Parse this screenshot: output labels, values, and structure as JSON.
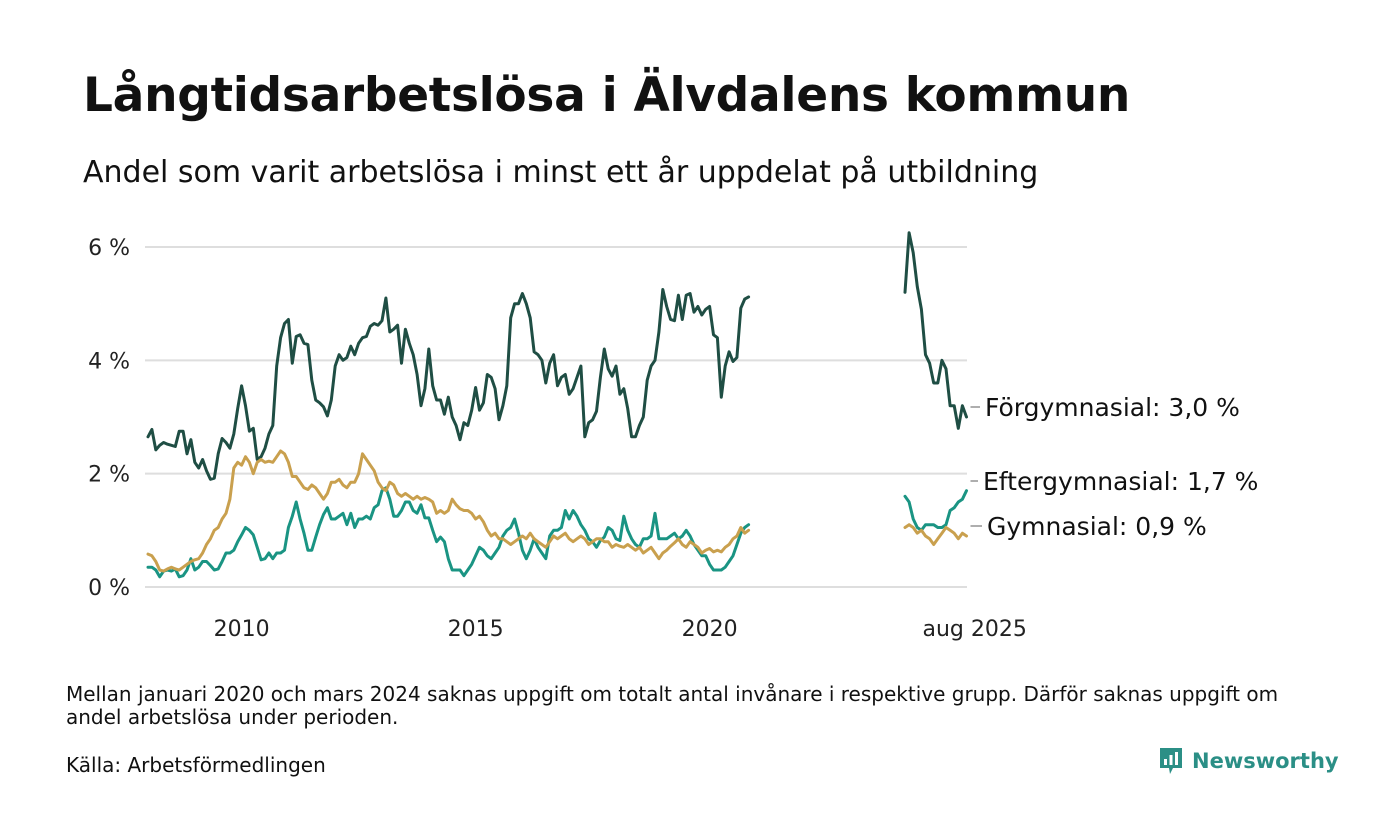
{
  "title": "Långtidsarbetslösa i Älvdalens kommun",
  "subtitle": "Andel som varit arbetslösa i minst ett år uppdelat på utbildning",
  "note": "Mellan januari 2020 och mars 2024 saknas uppgift om totalt antal invånare i respektive grupp. Därför saknas uppgift om andel arbetslösa under perioden.",
  "source": "Källa: Arbetsförmedlingen",
  "brand": {
    "name": "Newsworthy",
    "icon": "newsworthy-logo-icon",
    "color": "#2b8f86"
  },
  "chart_data": {
    "type": "line",
    "x_axis": {
      "type": "time",
      "ticks": [
        {
          "date": "2010-01",
          "label": "2010"
        },
        {
          "date": "2015-01",
          "label": "2015"
        },
        {
          "date": "2020-01",
          "label": "2020"
        },
        {
          "date": "2025-08",
          "label": "aug 2025"
        }
      ]
    },
    "y_axis": {
      "range": [
        0,
        6
      ],
      "unit": "%",
      "ticks": [
        {
          "value": 0,
          "label": "0 %"
        },
        {
          "value": 2,
          "label": "2 %"
        },
        {
          "value": 4,
          "label": "4 %"
        },
        {
          "value": 6,
          "label": "6 %"
        }
      ]
    },
    "grid": "horizontal",
    "axis_break": "x-axis compressed between 2021-01 and 2024-03 (no data)",
    "series": [
      {
        "name": "Förgymnasial",
        "color": "#1f4e44",
        "end_label": "Förgymnasial: 3,0 %",
        "segments": [
          {
            "start": "2008-01",
            "values": [
              2.65,
              2.78,
              2.42,
              2.5,
              2.55,
              2.52,
              2.5,
              2.48,
              2.75,
              2.75,
              2.35,
              2.6,
              2.2,
              2.1,
              2.25,
              2.05,
              1.9,
              1.92,
              2.35,
              2.62,
              2.55,
              2.45,
              2.7,
              3.15,
              3.55,
              3.2,
              2.75,
              2.8,
              2.25,
              2.3,
              2.45,
              2.7,
              2.85,
              3.9,
              4.4,
              4.65,
              4.72,
              3.95,
              4.42,
              4.45,
              4.3,
              4.28,
              3.65,
              3.3,
              3.25,
              3.18,
              3.02,
              3.3,
              3.9,
              4.1,
              4.0,
              4.05,
              4.25,
              4.1,
              4.3,
              4.4,
              4.42,
              4.6,
              4.65,
              4.62,
              4.7,
              5.1,
              4.5,
              4.55,
              4.62,
              3.95,
              4.55,
              4.3,
              4.1,
              3.75,
              3.2,
              3.5,
              4.2,
              3.55,
              3.3,
              3.3,
              3.05,
              3.35,
              3.0,
              2.85,
              2.6,
              2.9,
              2.85,
              3.12,
              3.52,
              3.12,
              3.25,
              3.75,
              3.7,
              3.5,
              2.95,
              3.2,
              3.55,
              4.75,
              5.0,
              5.0,
              5.18,
              5.0,
              4.75,
              4.15,
              4.1,
              4.0,
              3.6,
              3.95,
              4.1,
              3.55,
              3.7,
              3.75,
              3.4,
              3.5,
              3.7,
              3.9,
              2.65,
              2.9,
              2.95,
              3.1,
              3.7,
              4.2,
              3.85,
              3.72,
              3.9,
              3.4,
              3.5,
              3.15,
              2.65,
              2.65,
              2.85,
              3.0,
              3.65,
              3.9,
              4.0,
              4.5,
              5.25,
              4.95,
              4.72,
              4.7,
              5.15,
              4.72,
              5.15,
              5.18,
              4.85,
              4.95,
              4.8,
              4.9,
              4.95,
              4.45,
              4.4,
              3.35,
              3.9,
              4.15,
              3.98,
              4.05,
              4.92,
              5.08,
              5.12
            ]
          },
          {
            "start": "2024-03",
            "values": [
              5.2,
              6.25,
              5.9,
              5.3,
              4.9,
              4.1,
              3.95,
              3.6,
              3.6,
              4.0,
              3.85,
              3.2,
              3.2,
              2.8,
              3.2,
              3.0
            ]
          }
        ]
      },
      {
        "name": "Eftergymnasial",
        "color": "#1a9483",
        "end_label": "Eftergymnasial: 1,7 %",
        "segments": [
          {
            "start": "2008-01",
            "values": [
              0.35,
              0.35,
              0.3,
              0.18,
              0.28,
              0.3,
              0.28,
              0.32,
              0.18,
              0.2,
              0.3,
              0.5,
              0.3,
              0.35,
              0.45,
              0.45,
              0.38,
              0.3,
              0.32,
              0.45,
              0.6,
              0.6,
              0.65,
              0.8,
              0.92,
              1.05,
              1.0,
              0.92,
              0.7,
              0.48,
              0.5,
              0.6,
              0.5,
              0.6,
              0.6,
              0.65,
              1.05,
              1.25,
              1.5,
              1.2,
              0.95,
              0.65,
              0.65,
              0.88,
              1.1,
              1.28,
              1.4,
              1.2,
              1.2,
              1.25,
              1.3,
              1.1,
              1.3,
              1.05,
              1.2,
              1.2,
              1.25,
              1.2,
              1.4,
              1.45,
              1.7,
              1.75,
              1.55,
              1.25,
              1.25,
              1.35,
              1.5,
              1.5,
              1.35,
              1.3,
              1.45,
              1.22,
              1.22,
              1.0,
              0.8,
              0.88,
              0.8,
              0.5,
              0.3,
              0.3,
              0.3,
              0.2,
              0.3,
              0.4,
              0.55,
              0.7,
              0.65,
              0.55,
              0.5,
              0.6,
              0.7,
              0.9,
              1.0,
              1.05,
              1.2,
              0.95,
              0.65,
              0.5,
              0.65,
              0.85,
              0.7,
              0.6,
              0.5,
              0.9,
              1.0,
              1.0,
              1.05,
              1.35,
              1.2,
              1.35,
              1.25,
              1.1,
              1.0,
              0.85,
              0.8,
              0.7,
              0.82,
              0.88,
              1.05,
              1.0,
              0.85,
              0.82,
              1.25,
              1.0,
              0.85,
              0.75,
              0.7,
              0.85,
              0.85,
              0.9,
              1.3,
              0.85,
              0.85,
              0.85,
              0.9,
              0.95,
              0.85,
              0.9,
              1.0,
              0.9,
              0.75,
              0.65,
              0.55,
              0.55,
              0.4,
              0.3,
              0.3,
              0.3,
              0.35,
              0.45,
              0.55,
              0.75,
              0.95,
              1.05,
              1.1
            ]
          },
          {
            "start": "2024-03",
            "values": [
              1.6,
              1.5,
              1.2,
              1.05,
              1.0,
              1.1,
              1.1,
              1.1,
              1.05,
              1.05,
              1.1,
              1.35,
              1.4,
              1.5,
              1.55,
              1.7
            ]
          }
        ]
      },
      {
        "name": "Gymnasial",
        "color": "#c9a04e",
        "end_label": "Gymnasial: 0,9 %",
        "segments": [
          {
            "start": "2008-01",
            "values": [
              0.58,
              0.55,
              0.45,
              0.3,
              0.28,
              0.32,
              0.35,
              0.32,
              0.3,
              0.35,
              0.4,
              0.45,
              0.48,
              0.5,
              0.6,
              0.75,
              0.85,
              1.0,
              1.05,
              1.2,
              1.3,
              1.55,
              2.1,
              2.2,
              2.15,
              2.3,
              2.2,
              2.0,
              2.2,
              2.25,
              2.2,
              2.22,
              2.2,
              2.3,
              2.4,
              2.35,
              2.2,
              1.95,
              1.95,
              1.85,
              1.75,
              1.72,
              1.8,
              1.75,
              1.65,
              1.55,
              1.65,
              1.85,
              1.85,
              1.9,
              1.8,
              1.75,
              1.85,
              1.85,
              2.0,
              2.35,
              2.25,
              2.15,
              2.05,
              1.85,
              1.75,
              1.7,
              1.85,
              1.8,
              1.65,
              1.6,
              1.65,
              1.6,
              1.55,
              1.6,
              1.55,
              1.58,
              1.55,
              1.5,
              1.3,
              1.35,
              1.3,
              1.35,
              1.55,
              1.45,
              1.38,
              1.35,
              1.35,
              1.3,
              1.2,
              1.25,
              1.15,
              1.0,
              0.9,
              0.95,
              0.85,
              0.85,
              0.8,
              0.75,
              0.8,
              0.85,
              0.9,
              0.85,
              0.95,
              0.85,
              0.8,
              0.75,
              0.7,
              0.8,
              0.9,
              0.85,
              0.9,
              0.95,
              0.85,
              0.8,
              0.85,
              0.9,
              0.85,
              0.75,
              0.8,
              0.85,
              0.85,
              0.8,
              0.8,
              0.7,
              0.75,
              0.72,
              0.7,
              0.75,
              0.7,
              0.65,
              0.7,
              0.6,
              0.65,
              0.7,
              0.6,
              0.5,
              0.6,
              0.65,
              0.72,
              0.78,
              0.85,
              0.75,
              0.7,
              0.8,
              0.75,
              0.7,
              0.6,
              0.65,
              0.68,
              0.62,
              0.65,
              0.62,
              0.7,
              0.75,
              0.85,
              0.9,
              1.05,
              0.95,
              1.0
            ]
          },
          {
            "start": "2024-03",
            "values": [
              1.05,
              1.1,
              1.05,
              0.95,
              1.0,
              0.9,
              0.85,
              0.75,
              0.85,
              0.95,
              1.05,
              1.0,
              0.95,
              0.85,
              0.95,
              0.9
            ]
          }
        ]
      }
    ]
  }
}
